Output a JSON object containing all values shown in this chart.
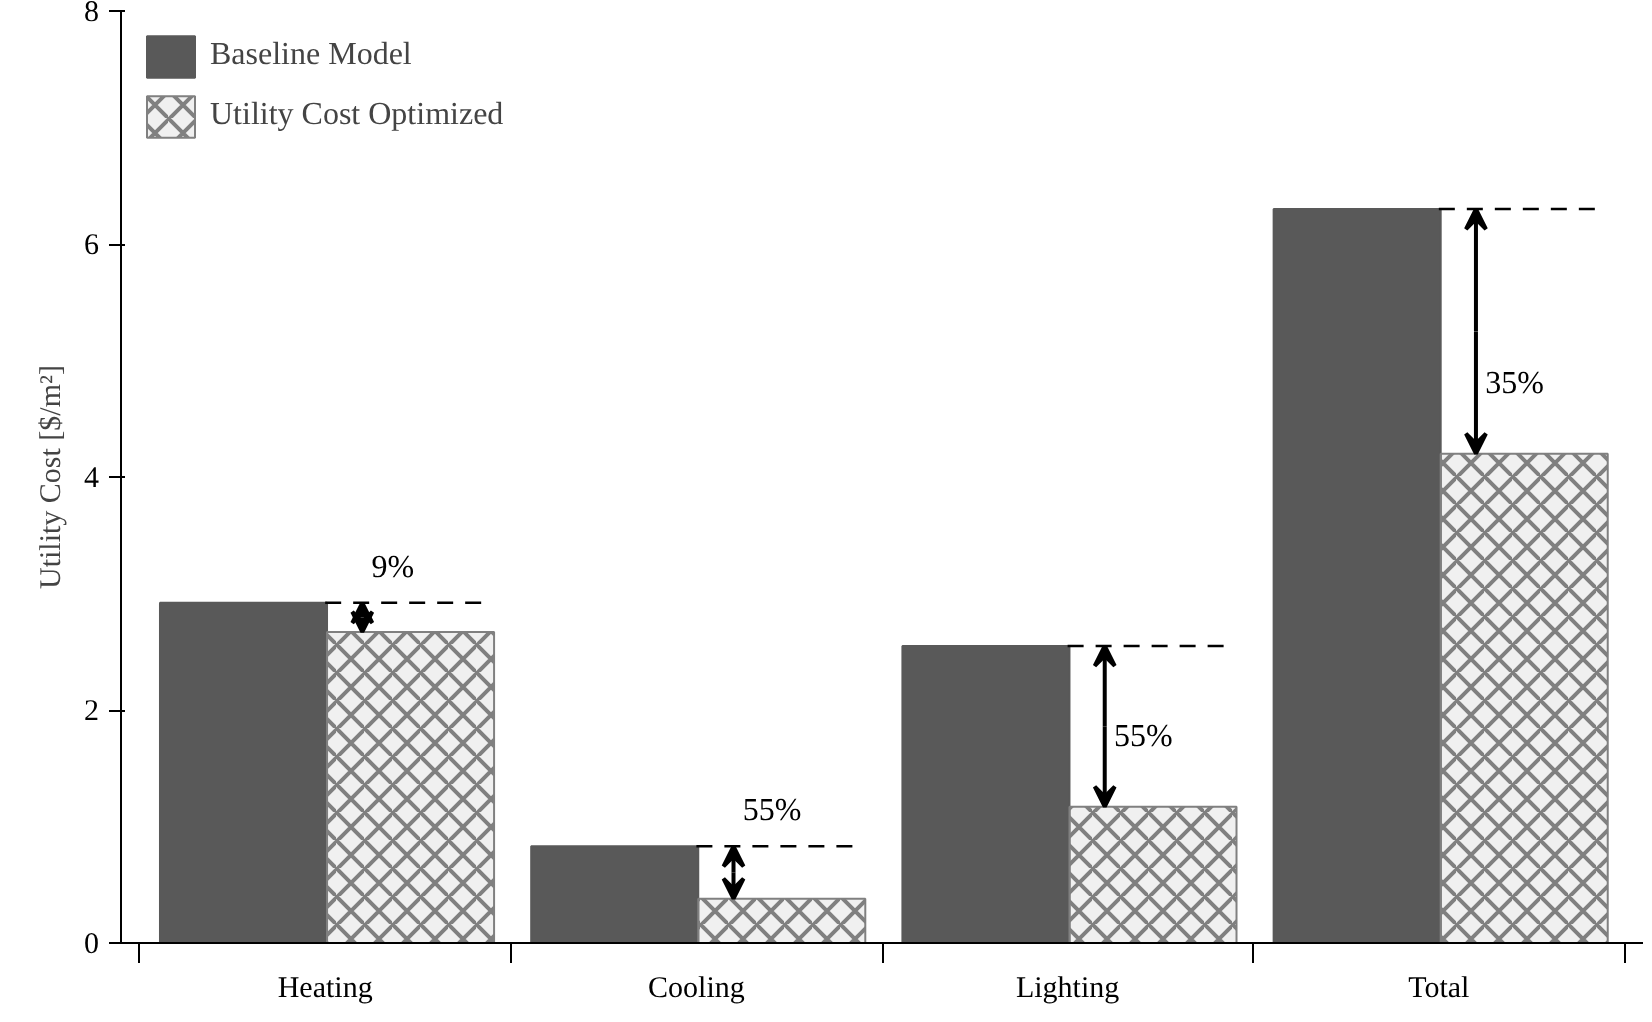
{
  "chart_data": {
    "type": "bar",
    "ylabel": "Utility Cost [$/m²]",
    "categories": [
      "Heating",
      "Cooling",
      "Lighting",
      "Total"
    ],
    "series": [
      {
        "name": "Baseline Model",
        "color": "#595959",
        "values": [
          2.92,
          0.83,
          2.55,
          6.3
        ]
      },
      {
        "name": "Utility Cost Optimized",
        "color": "#808080",
        "values": [
          2.67,
          0.38,
          1.17,
          4.2
        ]
      }
    ],
    "ylim": [
      0,
      8
    ],
    "yticks": [
      0,
      2,
      4,
      6,
      8
    ],
    "grid": false,
    "legend": "top left",
    "ref_lines": [
      {
        "axis": "y",
        "value": 2.92,
        "line_style": "dashed",
        "color": "#000000"
      },
      {
        "axis": "y",
        "value": 0.83,
        "line_style": "dashed",
        "color": "#000000"
      },
      {
        "axis": "y",
        "value": 2.55,
        "line_style": "dashed",
        "color": "#000000"
      },
      {
        "axis": "y",
        "value": 6.3,
        "line_style": "dashed",
        "color": "#000000"
      }
    ],
    "annotations": [
      {
        "text": "9%",
        "x": "Heating",
        "y": 2.67
      },
      {
        "text": "55%",
        "x": "Cooling",
        "y": 0.38
      },
      {
        "text": "55%",
        "x": "Lighting",
        "y": 1.17
      },
      {
        "text": "35%",
        "x": "Total",
        "y": 4.2
      }
    ]
  }
}
